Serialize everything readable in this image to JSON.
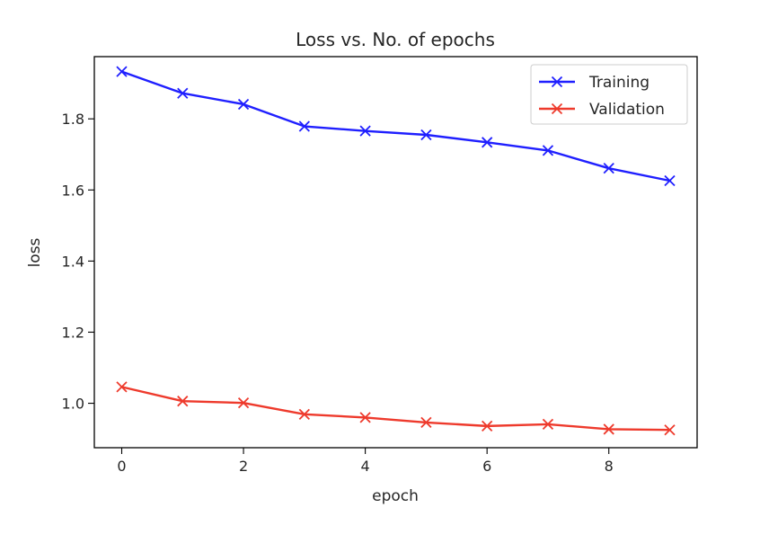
{
  "chart_data": {
    "type": "line",
    "title": "Loss vs. No. of epochs",
    "xlabel": "epoch",
    "ylabel": "loss",
    "x": [
      0,
      1,
      2,
      3,
      4,
      5,
      6,
      7,
      8,
      9
    ],
    "xlim": [
      -0.45,
      9.45
    ],
    "ylim": [
      0.875,
      1.975
    ],
    "xticks": [
      0,
      2,
      4,
      6,
      8
    ],
    "xtick_labels": [
      "0",
      "2",
      "4",
      "6",
      "8"
    ],
    "yticks": [
      1.0,
      1.2,
      1.4,
      1.6,
      1.8
    ],
    "ytick_labels": [
      "1.0",
      "1.2",
      "1.4",
      "1.6",
      "1.8"
    ],
    "grid": false,
    "legend_position": "top-right",
    "marker": "x",
    "series": [
      {
        "name": "Training",
        "color": "#1f1fff",
        "values": [
          1.933,
          1.872,
          1.841,
          1.779,
          1.766,
          1.755,
          1.734,
          1.711,
          1.661,
          1.626
        ]
      },
      {
        "name": "Validation",
        "color": "#ee3a2c",
        "values": [
          1.046,
          1.006,
          1.001,
          0.969,
          0.96,
          0.946,
          0.936,
          0.941,
          0.927,
          0.925
        ]
      }
    ]
  }
}
